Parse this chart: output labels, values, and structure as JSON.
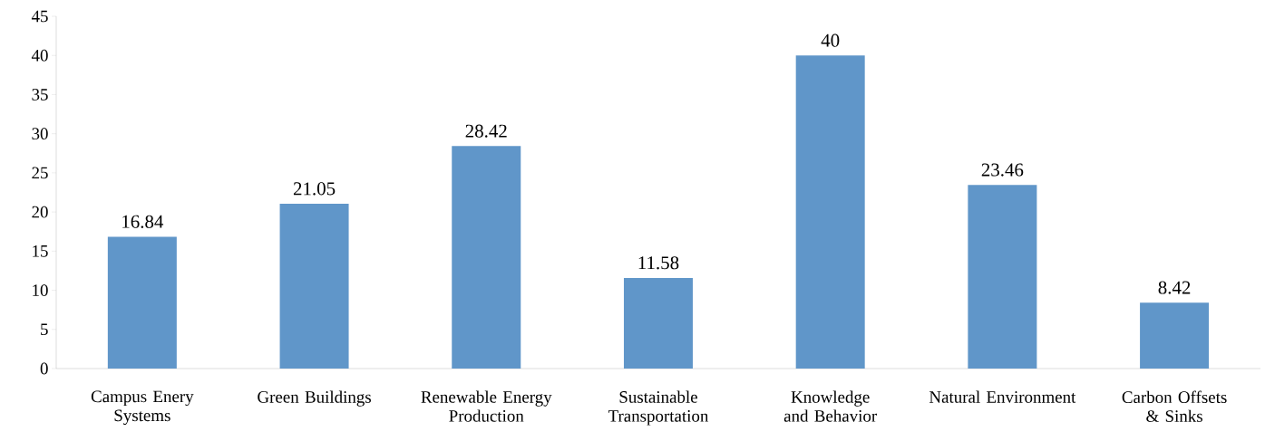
{
  "chart_data": {
    "type": "bar",
    "categories": [
      "Campus Enery Systems",
      "Green Buildings",
      "Renewable Energy Production",
      "Sustainable Transportation",
      "Knowledge and Behavior",
      "Natural Environment",
      "Carbon Offsets & Sinks"
    ],
    "values": [
      16.84,
      21.05,
      28.42,
      11.58,
      40,
      23.46,
      8.42
    ],
    "color": "#6096c9",
    "ylim": [
      0,
      45
    ],
    "yticks": [
      0,
      5,
      10,
      15,
      20,
      25,
      30,
      35,
      40,
      45
    ],
    "data_labels": true,
    "grid": false
  }
}
